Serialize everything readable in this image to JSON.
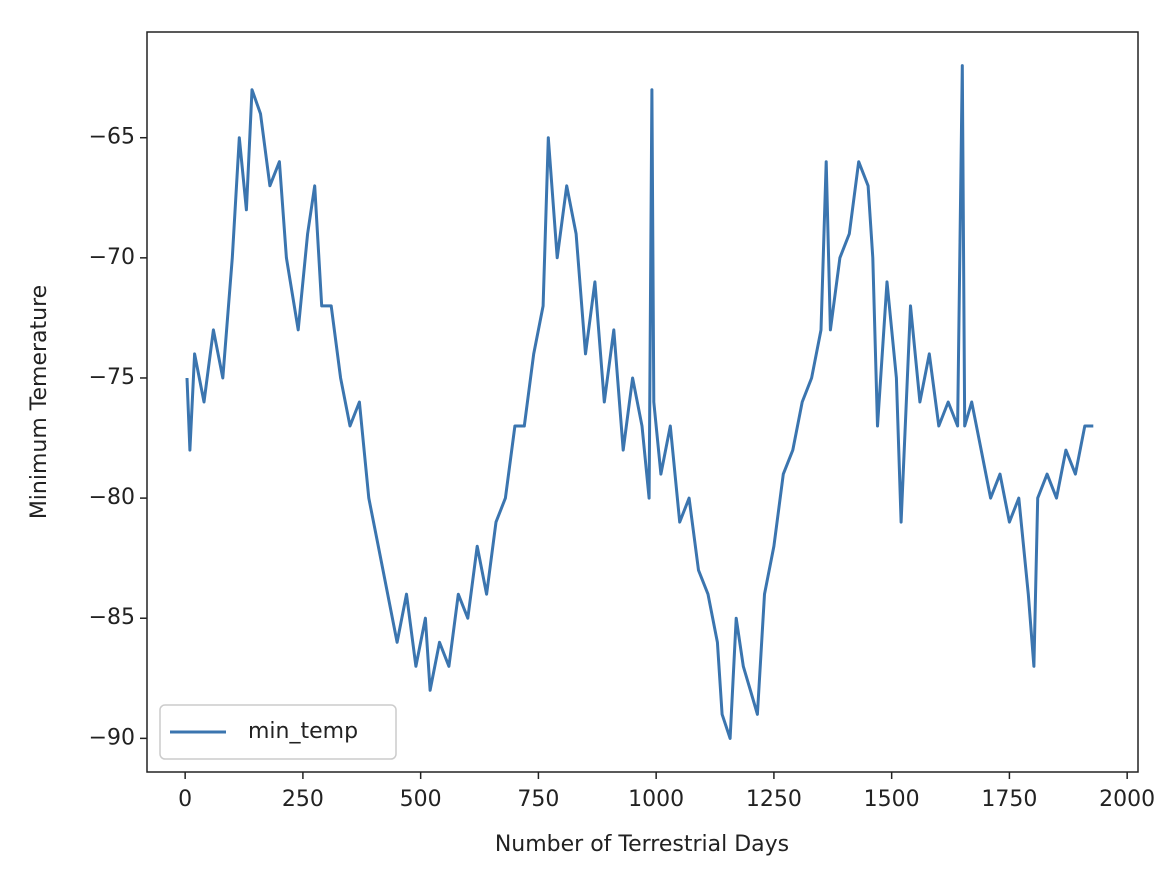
{
  "chart_data": {
    "type": "line",
    "x_label": "Number of Terrestrial Days",
    "y_label": "Minimum Temerature",
    "x": [
      4,
      10,
      20,
      40,
      60,
      80,
      100,
      115,
      130,
      142,
      160,
      180,
      200,
      215,
      240,
      260,
      275,
      290,
      310,
      330,
      350,
      370,
      390,
      410,
      430,
      450,
      470,
      490,
      510,
      520,
      540,
      560,
      580,
      600,
      620,
      640,
      660,
      680,
      700,
      720,
      740,
      760,
      771,
      790,
      810,
      830,
      850,
      870,
      890,
      910,
      930,
      950,
      970,
      985,
      991,
      995,
      1010,
      1030,
      1050,
      1070,
      1090,
      1110,
      1130,
      1140,
      1157,
      1170,
      1185,
      1200,
      1215,
      1230,
      1250,
      1270,
      1290,
      1310,
      1330,
      1350,
      1361,
      1370,
      1390,
      1410,
      1430,
      1450,
      1460,
      1470,
      1490,
      1510,
      1520,
      1540,
      1560,
      1580,
      1600,
      1620,
      1640,
      1650,
      1655,
      1670,
      1690,
      1710,
      1730,
      1750,
      1770,
      1790,
      1802,
      1810,
      1830,
      1850,
      1870,
      1890,
      1910,
      1928
    ],
    "series": [
      {
        "name": "min_temp",
        "color": "#3b75af",
        "values": [
          -75,
          -78,
          -74,
          -76,
          -73,
          -75,
          -70,
          -65,
          -68,
          -63,
          -64,
          -67,
          -66,
          -70,
          -73,
          -69,
          -67,
          -72,
          -72,
          -75,
          -77,
          -76,
          -80,
          -82,
          -84,
          -86,
          -84,
          -87,
          -85,
          -88,
          -86,
          -87,
          -84,
          -85,
          -82,
          -84,
          -81,
          -80,
          -77,
          -77,
          -74,
          -72,
          -65,
          -70,
          -67,
          -69,
          -74,
          -71,
          -76,
          -73,
          -78,
          -75,
          -77,
          -80,
          -63,
          -76,
          -79,
          -77,
          -81,
          -80,
          -83,
          -84,
          -86,
          -89,
          -90,
          -85,
          -87,
          -88,
          -89,
          -84,
          -82,
          -79,
          -78,
          -76,
          -75,
          -73,
          -66,
          -73,
          -70,
          -69,
          -66,
          -67,
          -70,
          -77,
          -71,
          -75,
          -81,
          -72,
          -76,
          -74,
          -77,
          -76,
          -77,
          -62,
          -77,
          -76,
          -78,
          -80,
          -79,
          -81,
          -80,
          -84,
          -87,
          -80,
          -79,
          -80,
          -78,
          -79,
          -77,
          -77
        ]
      }
    ],
    "xlim": [
      -81,
      2023
    ],
    "ylim": [
      -91.4,
      -60.6
    ],
    "xticks": [
      0,
      250,
      500,
      750,
      1000,
      1250,
      1500,
      1750,
      2000
    ],
    "yticks": [
      {
        "value": -90,
        "label": "−90"
      },
      {
        "value": -85,
        "label": "−85"
      },
      {
        "value": -80,
        "label": "−80"
      },
      {
        "value": -75,
        "label": "−75"
      },
      {
        "value": -70,
        "label": "−70"
      },
      {
        "value": -65,
        "label": "−65"
      }
    ],
    "legend": "lower left",
    "grid": false
  }
}
